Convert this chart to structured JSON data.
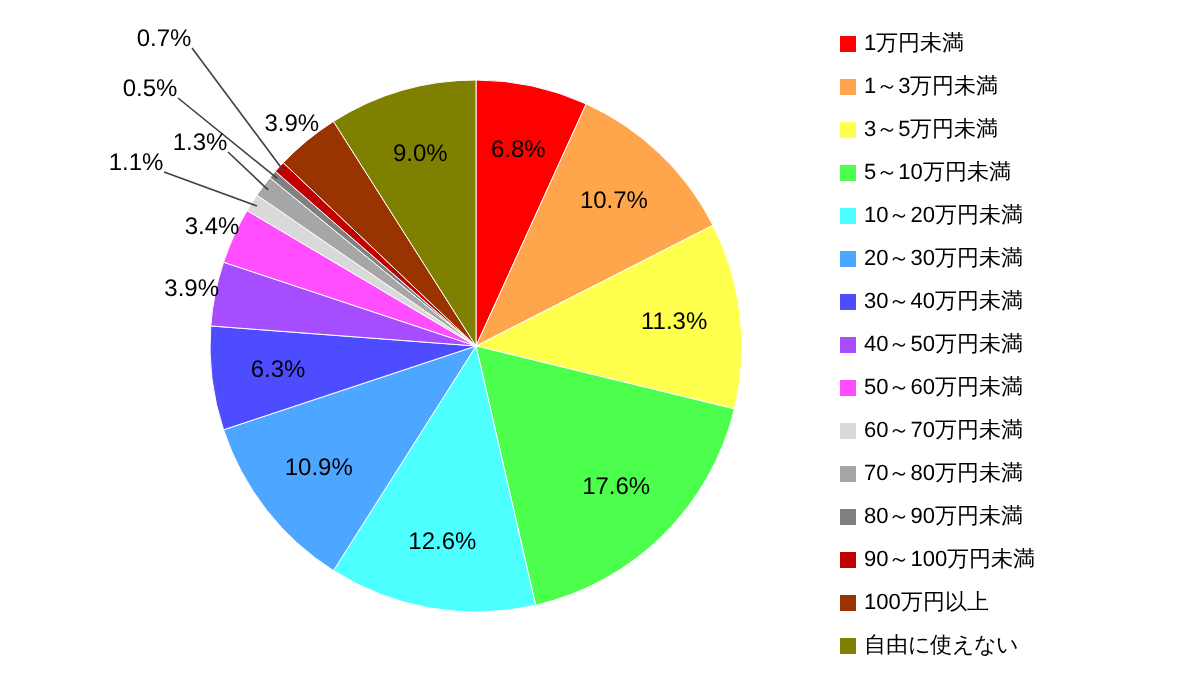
{
  "chart_data": {
    "type": "pie",
    "categories": [
      "1万円未満",
      "1～3万円未満",
      "3～5万円未満",
      "5～10万円未満",
      "10～20万円未満",
      "20～30万円未満",
      "30～40万円未満",
      "40～50万円未満",
      "50～60万円未満",
      "60～70万円未満",
      "70～80万円未満",
      "80～90万円未満",
      "90～100万円未満",
      "100万円以上",
      "自由に使えない"
    ],
    "values": [
      6.8,
      10.7,
      11.3,
      17.6,
      12.6,
      10.9,
      6.3,
      3.9,
      3.4,
      1.1,
      1.3,
      0.5,
      0.7,
      3.9,
      9.0
    ],
    "value_labels": [
      "6.8%",
      "10.7%",
      "11.3%",
      "17.6%",
      "12.6%",
      "10.9%",
      "6.3%",
      "3.9%",
      "3.4%",
      "1.1%",
      "1.3%",
      "0.5%",
      "0.7%",
      "3.9%",
      "9.0%"
    ],
    "colors": [
      "#ff0000",
      "#ffa64d",
      "#ffff4d",
      "#4dff4d",
      "#4dffff",
      "#4da6ff",
      "#4d4dff",
      "#a64dff",
      "#ff4dff",
      "#d9d9d9",
      "#a6a6a6",
      "#808080",
      "#c00000",
      "#993300",
      "#808000"
    ],
    "legend": "right"
  }
}
